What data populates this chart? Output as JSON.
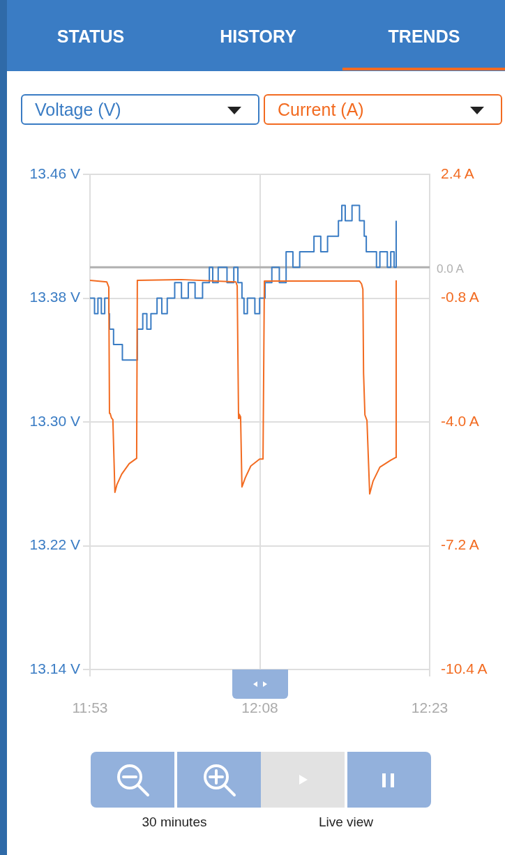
{
  "chart_data": {
    "type": "line",
    "ylabel": "Voltage (V)",
    "y2label": "Current (A)",
    "annotations": [
      "STATUS",
      "HISTORY",
      "TRENDS",
      "30 minutes",
      "Live view"
    ],
    "xlim": [
      11.8833,
      12.3833
    ],
    "xticks": [
      {
        "value": 11.8833,
        "label": "11:53"
      },
      {
        "value": 12.1333,
        "label": "12:08"
      },
      {
        "value": 12.3833,
        "label": "12:23"
      }
    ],
    "ylim": [
      13.14,
      13.46
    ],
    "yticks": [
      {
        "value": 13.14,
        "label": "13.14 V"
      },
      {
        "value": 13.22,
        "label": "13.22 V"
      },
      {
        "value": 13.3,
        "label": "13.30 V"
      },
      {
        "value": 13.38,
        "label": "13.38 V"
      },
      {
        "value": 13.46,
        "label": "13.46 V"
      }
    ],
    "y2lim": [
      -10.4,
      2.4
    ],
    "y2ticks": [
      {
        "value": -10.4,
        "label": "-10.4 A"
      },
      {
        "value": -7.2,
        "label": "-7.2 A"
      },
      {
        "value": -4.0,
        "label": "-4.0 A"
      },
      {
        "value": -0.8,
        "label": "-0.8 A"
      },
      {
        "value": 2.4,
        "label": "2.4 A"
      }
    ],
    "ref_lines": [
      {
        "axis": "y2",
        "value": 0,
        "label": "0.0 A",
        "color": "#b0b0b0"
      }
    ],
    "grid": true,
    "legend": false,
    "marker": "none",
    "series": [
      {
        "type": "step",
        "color": "#3a7cc4",
        "x": [
          11.8833,
          11.89,
          11.895,
          11.9,
          11.905,
          11.911,
          11.912,
          11.918,
          11.925,
          11.931,
          11.951,
          11.953,
          11.961,
          11.967,
          11.973,
          11.982,
          11.989,
          11.997,
          12.008,
          12.018,
          12.028,
          12.038,
          12.049,
          12.059,
          12.064,
          12.072,
          12.085,
          12.095,
          12.101,
          12.107,
          12.11,
          12.115,
          12.126,
          12.133,
          12.136,
          12.141,
          12.151,
          12.162,
          12.172,
          12.182,
          12.192,
          12.203,
          12.213,
          12.223,
          12.233,
          12.239,
          12.249,
          12.254,
          12.259,
          12.269,
          12.28,
          12.287,
          12.29,
          12.3,
          12.305,
          12.31,
          12.321,
          12.326,
          12.331,
          12.334
        ],
        "values": [
          13.38,
          13.37,
          13.38,
          13.37,
          13.38,
          13.37,
          13.36,
          13.35,
          13.35,
          13.34,
          13.34,
          13.36,
          13.37,
          13.36,
          13.37,
          13.38,
          13.37,
          13.38,
          13.39,
          13.38,
          13.39,
          13.38,
          13.39,
          13.4,
          13.39,
          13.4,
          13.39,
          13.4,
          13.39,
          13.38,
          13.37,
          13.38,
          13.37,
          13.38,
          13.38,
          13.39,
          13.4,
          13.39,
          13.41,
          13.4,
          13.41,
          13.41,
          13.42,
          13.41,
          13.42,
          13.42,
          13.43,
          13.44,
          13.43,
          13.44,
          13.43,
          13.42,
          13.41,
          13.41,
          13.4,
          13.41,
          13.4,
          13.41,
          13.4,
          13.43
        ]
      },
      {
        "type": "line",
        "color": "#f26b21",
        "axis": "y2",
        "x": [
          11.8833,
          11.908,
          11.911,
          11.912,
          11.913,
          11.915,
          11.917,
          11.92,
          11.923,
          11.93,
          11.941,
          11.952,
          11.953,
          12.018,
          12.098,
          12.1,
          12.102,
          12.103,
          12.105,
          12.107,
          12.112,
          12.12,
          12.133,
          12.138,
          12.14,
          12.213,
          12.28,
          12.283,
          12.285,
          12.286,
          12.288,
          12.291,
          12.295,
          12.3,
          12.31,
          12.326,
          12.333,
          12.334
        ],
        "values": [
          -0.34,
          -0.38,
          -0.52,
          -3.78,
          -3.78,
          -3.9,
          -3.94,
          -5.82,
          -5.62,
          -5.35,
          -5.08,
          -4.94,
          -0.34,
          -0.32,
          -0.38,
          -0.48,
          -3.91,
          -3.8,
          -3.87,
          -5.68,
          -5.44,
          -5.14,
          -4.96,
          -4.96,
          -0.36,
          -0.36,
          -0.36,
          -0.43,
          -0.57,
          -2.74,
          -3.82,
          -3.96,
          -5.86,
          -5.53,
          -5.17,
          -4.99,
          -4.92,
          -0.34
        ]
      }
    ]
  }
}
